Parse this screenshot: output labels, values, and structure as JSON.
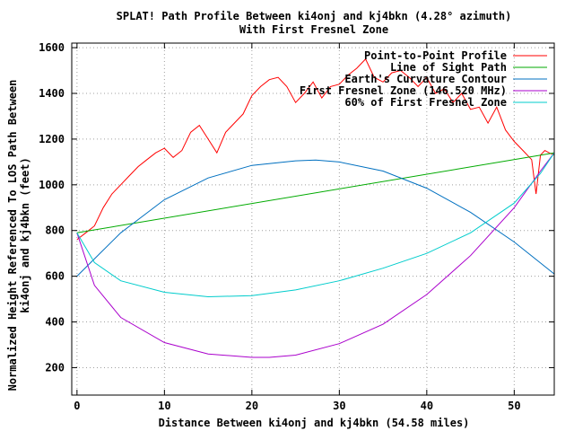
{
  "chart_data": {
    "type": "line",
    "title": "SPLAT! Path Profile Between ki4onj and kj4bkn (4.28° azimuth)",
    "subtitle": "With First Fresnel Zone",
    "xlabel": "Distance Between ki4onj and kj4bkn (54.58 miles)",
    "ylabel_line1": "Normalized Height Referenced To LOS Path Between",
    "ylabel_line2": "ki4onj and kj4bkn (feet)",
    "xlim": [
      -0.6,
      54.58
    ],
    "ylim": [
      80,
      1620
    ],
    "xticks": [
      0,
      10,
      20,
      30,
      40,
      50
    ],
    "yticks": [
      200,
      400,
      600,
      800,
      1000,
      1200,
      1400,
      1600
    ],
    "grid": true,
    "legend_position": "top-right",
    "series": [
      {
        "name": "Point-to-Point Profile",
        "color": "#ff0000",
        "x": [
          0,
          1,
          2,
          3,
          4,
          5,
          6,
          7,
          8,
          9,
          10,
          11,
          12,
          13,
          14,
          15,
          16,
          17,
          18,
          19,
          20,
          21,
          22,
          23,
          24,
          25,
          26,
          27,
          28,
          29,
          30,
          31,
          32,
          33,
          34,
          35,
          36,
          37,
          38,
          39,
          40,
          41,
          42,
          43,
          44,
          45,
          46,
          47,
          48,
          49,
          50,
          51,
          52,
          52.5,
          53,
          53.5,
          54,
          54.58
        ],
        "y": [
          760,
          790,
          820,
          900,
          960,
          1000,
          1040,
          1080,
          1110,
          1140,
          1160,
          1120,
          1150,
          1230,
          1260,
          1200,
          1140,
          1230,
          1270,
          1310,
          1390,
          1430,
          1460,
          1470,
          1430,
          1360,
          1400,
          1450,
          1380,
          1430,
          1440,
          1480,
          1510,
          1550,
          1470,
          1450,
          1490,
          1500,
          1470,
          1430,
          1470,
          1400,
          1420,
          1360,
          1400,
          1330,
          1340,
          1270,
          1340,
          1240,
          1190,
          1150,
          1110,
          960,
          1130,
          1150,
          1140,
          1130
        ]
      },
      {
        "name": "Line of Sight Path",
        "color": "#00aa00",
        "x": [
          0,
          54.58
        ],
        "y": [
          790,
          1140
        ]
      },
      {
        "name": "Earth's Curvature Contour",
        "color": "#0070c0",
        "x": [
          0,
          5,
          10,
          15,
          20,
          25,
          27.3,
          30,
          35,
          40,
          45,
          50,
          54.58
        ],
        "y": [
          600,
          790,
          935,
          1030,
          1085,
          1105,
          1108,
          1100,
          1060,
          985,
          880,
          750,
          610
        ]
      },
      {
        "name": "First Fresnel Zone (146.520 MHz)",
        "color": "#aa00cc",
        "x": [
          0,
          2,
          5,
          10,
          15,
          20,
          22,
          25,
          30,
          35,
          40,
          45,
          50,
          53,
          54.58
        ],
        "y": [
          790,
          560,
          420,
          310,
          260,
          245,
          245,
          255,
          305,
          390,
          520,
          690,
          900,
          1060,
          1140
        ]
      },
      {
        "name": "60% of First Fresnel Zone",
        "color": "#00cccc",
        "x": [
          0,
          2,
          5,
          10,
          15,
          20,
          25,
          30,
          35,
          40,
          45,
          50,
          53,
          54.58
        ],
        "y": [
          790,
          660,
          580,
          530,
          510,
          515,
          540,
          580,
          635,
          700,
          790,
          920,
          1050,
          1140
        ]
      }
    ]
  }
}
